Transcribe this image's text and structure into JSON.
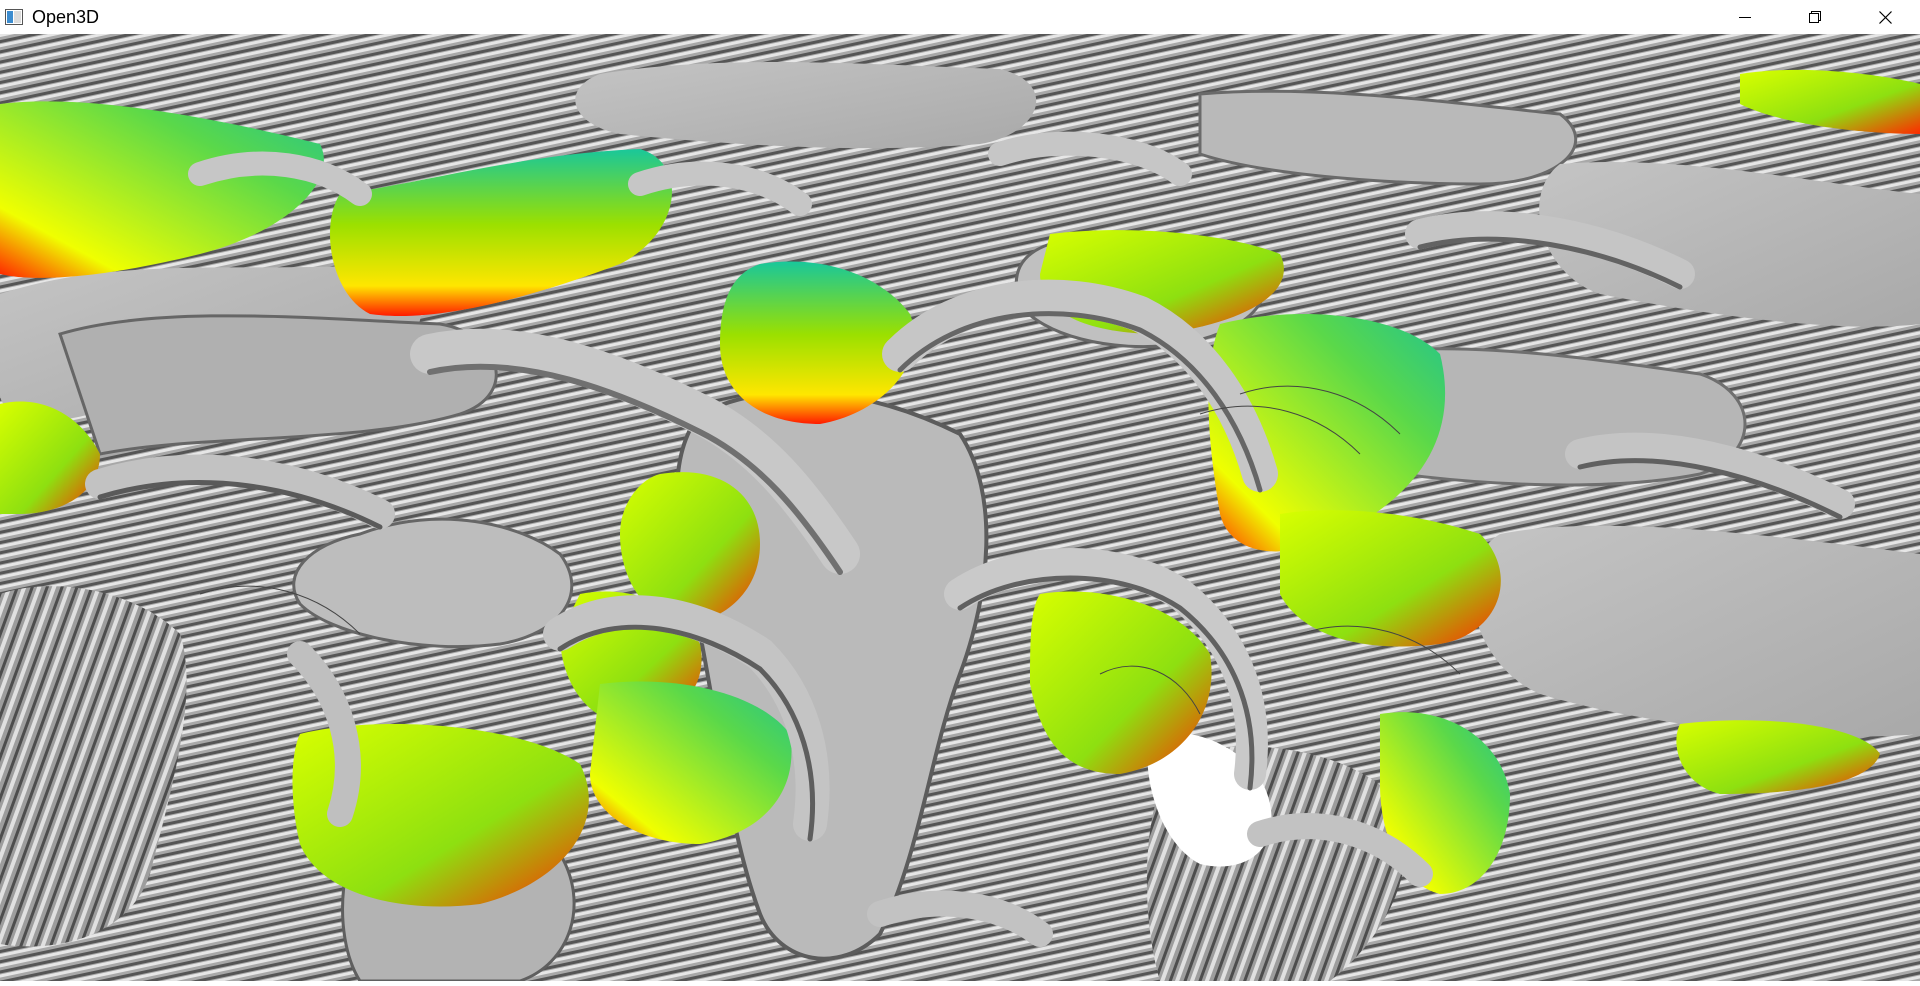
{
  "window": {
    "title": "Open3D",
    "icon": "open3d-app-icon",
    "controls": {
      "minimize_icon": "minimize-icon",
      "restore_icon": "restore-icon",
      "close_icon": "close-icon"
    }
  },
  "scene": {
    "description_icon": "3d-mesh-render",
    "colors": {
      "mesh_gray": "#b8b8b8",
      "mesh_shadow": "#5a5a5a",
      "background": "#ffffff",
      "height_low": "#ff1a00",
      "height_mid": "#e6ff00",
      "height_high": "#19c79a"
    }
  }
}
